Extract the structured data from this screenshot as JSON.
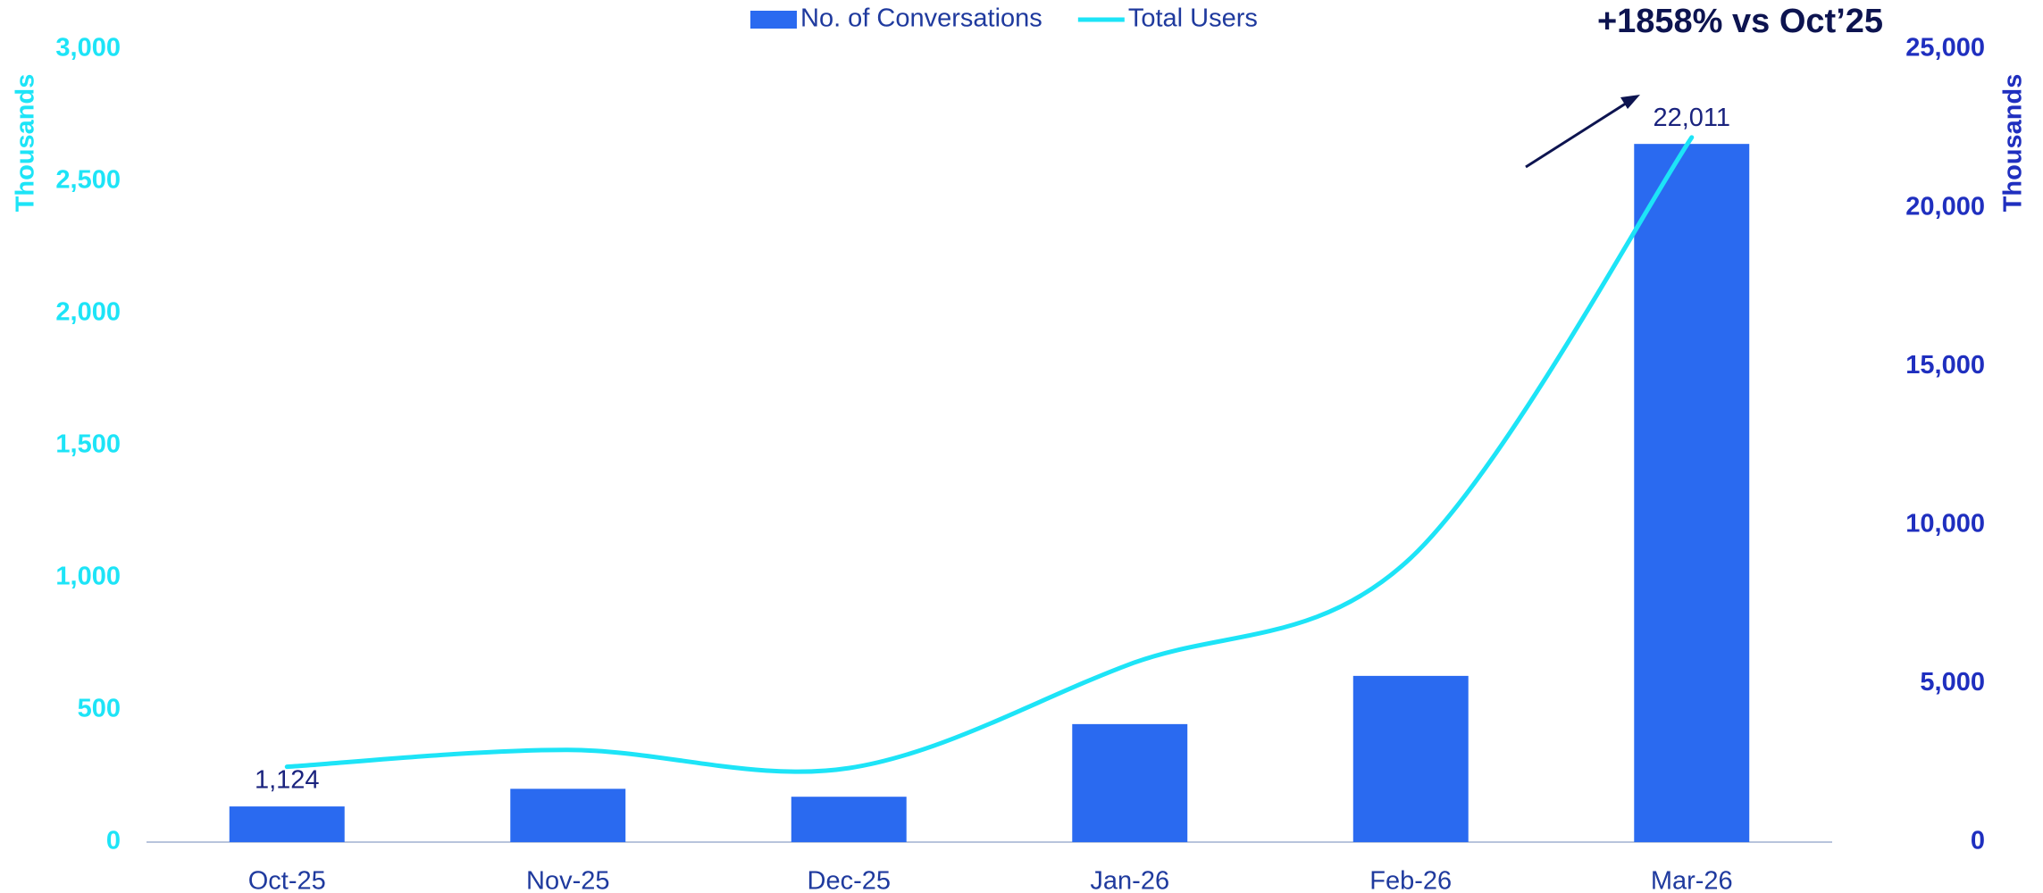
{
  "chart_data": {
    "type": "bar_line",
    "annotation": "+1858% vs Oct’25",
    "ylabel": "Thousands",
    "y2label": "Thousands",
    "categories": [
      "Oct-25",
      "Nov-25",
      "Dec-25",
      "Jan-26",
      "Feb-26",
      "Mar-26"
    ],
    "series": [
      {
        "name": "No. of Conversations",
        "type": "bar",
        "axis": "y2",
        "color": "#2a6af0",
        "values": [
          1124,
          1680,
          1430,
          3720,
          5240,
          22011
        ],
        "value_labels": [
          "1,124",
          null,
          null,
          null,
          null,
          "22,011"
        ]
      },
      {
        "name": "Total Users",
        "type": "line",
        "axis": "y",
        "color": "#1de4f7",
        "values": [
          285,
          349,
          280,
          673,
          1075,
          2666
        ]
      }
    ],
    "ylim": [
      0,
      3000
    ],
    "yticks": [
      0,
      500,
      {
        "value": 1000,
        "label": "1,000"
      },
      {
        "value": 1500,
        "label": "1,500"
      },
      {
        "value": 2000,
        "label": "2,000"
      },
      {
        "value": 2500,
        "label": "2,500"
      },
      {
        "value": 3000,
        "label": "3,000"
      }
    ],
    "y2lim": [
      0,
      25000
    ],
    "y2ticks": [
      0,
      {
        "value": 5000,
        "label": "5,000"
      },
      {
        "value": 10000,
        "label": "10,000"
      },
      {
        "value": 15000,
        "label": "15,000"
      },
      {
        "value": 20000,
        "label": "20,000"
      },
      {
        "value": 25000,
        "label": "25,000"
      }
    ],
    "legend": "top"
  }
}
